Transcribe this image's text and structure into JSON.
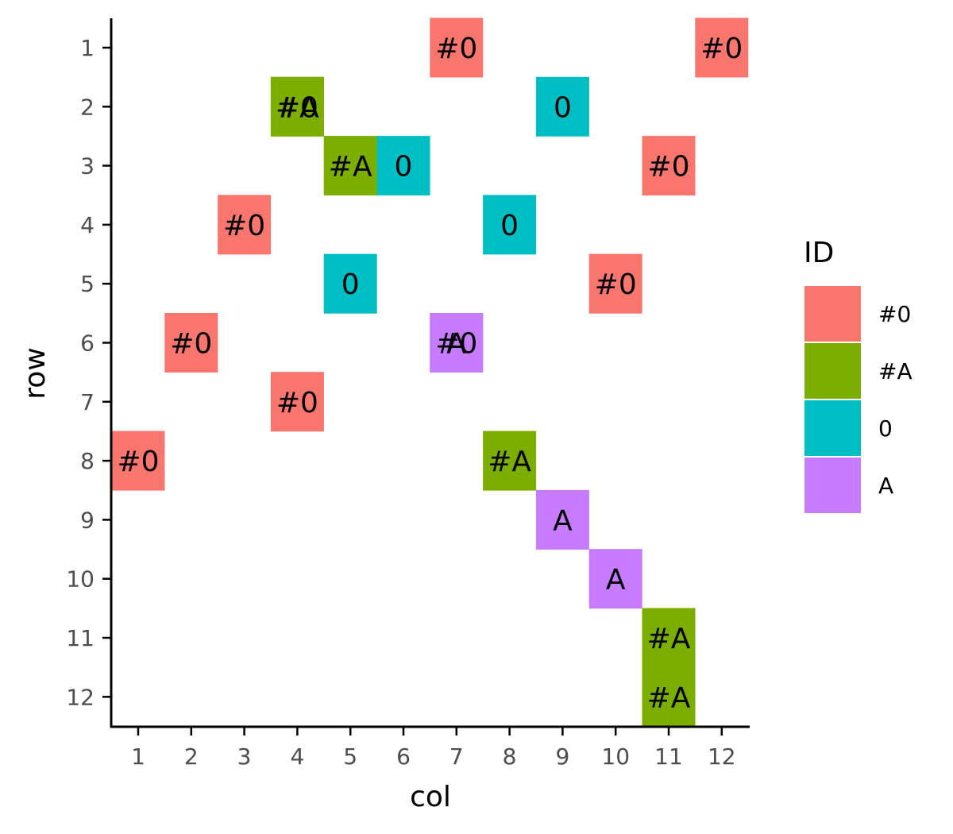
{
  "chart_data": {
    "type": "heatmap",
    "xlabel": "col",
    "ylabel": "row",
    "x_ticks": [
      "1",
      "2",
      "3",
      "4",
      "5",
      "6",
      "7",
      "8",
      "9",
      "10",
      "11",
      "12"
    ],
    "y_ticks": [
      "1",
      "2",
      "3",
      "4",
      "5",
      "6",
      "7",
      "8",
      "9",
      "10",
      "11",
      "12"
    ],
    "y_reversed": true,
    "grid": false,
    "legend": {
      "title": "ID",
      "position": "right",
      "entries": [
        {
          "label": "#0",
          "color": "#F8766D"
        },
        {
          "label": "#A",
          "color": "#7CAE00"
        },
        {
          "label": "0",
          "color": "#00BFC4"
        },
        {
          "label": "A",
          "color": "#C77CFF"
        }
      ]
    },
    "tiles": [
      {
        "col": 7,
        "row": 1,
        "id": "#0",
        "label": "#0"
      },
      {
        "col": 12,
        "row": 1,
        "id": "#0",
        "label": "#0"
      },
      {
        "col": 4,
        "row": 2,
        "id": "#A",
        "label": "#A"
      },
      {
        "col": 4,
        "row": 2,
        "id": "#A",
        "label": "#0"
      },
      {
        "col": 9,
        "row": 2,
        "id": "0",
        "label": "0"
      },
      {
        "col": 5,
        "row": 3,
        "id": "#A",
        "label": "#A"
      },
      {
        "col": 6,
        "row": 3,
        "id": "0",
        "label": "0"
      },
      {
        "col": 11,
        "row": 3,
        "id": "#0",
        "label": "#0"
      },
      {
        "col": 3,
        "row": 4,
        "id": "#0",
        "label": "#0"
      },
      {
        "col": 8,
        "row": 4,
        "id": "0",
        "label": "0"
      },
      {
        "col": 5,
        "row": 5,
        "id": "0",
        "label": "0"
      },
      {
        "col": 10,
        "row": 5,
        "id": "#0",
        "label": "#0"
      },
      {
        "col": 2,
        "row": 6,
        "id": "#0",
        "label": "#0"
      },
      {
        "col": 7,
        "row": 6,
        "id": "A",
        "label": "A"
      },
      {
        "col": 7,
        "row": 6,
        "id": "A",
        "label": "#0"
      },
      {
        "col": 4,
        "row": 7,
        "id": "#0",
        "label": "#0"
      },
      {
        "col": 1,
        "row": 8,
        "id": "#0",
        "label": "#0"
      },
      {
        "col": 8,
        "row": 8,
        "id": "#A",
        "label": "#A"
      },
      {
        "col": 9,
        "row": 9,
        "id": "A",
        "label": "A"
      },
      {
        "col": 10,
        "row": 10,
        "id": "A",
        "label": "A"
      },
      {
        "col": 11,
        "row": 11,
        "id": "#A",
        "label": "#A"
      },
      {
        "col": 11,
        "row": 12,
        "id": "#A",
        "label": "#A"
      }
    ]
  }
}
